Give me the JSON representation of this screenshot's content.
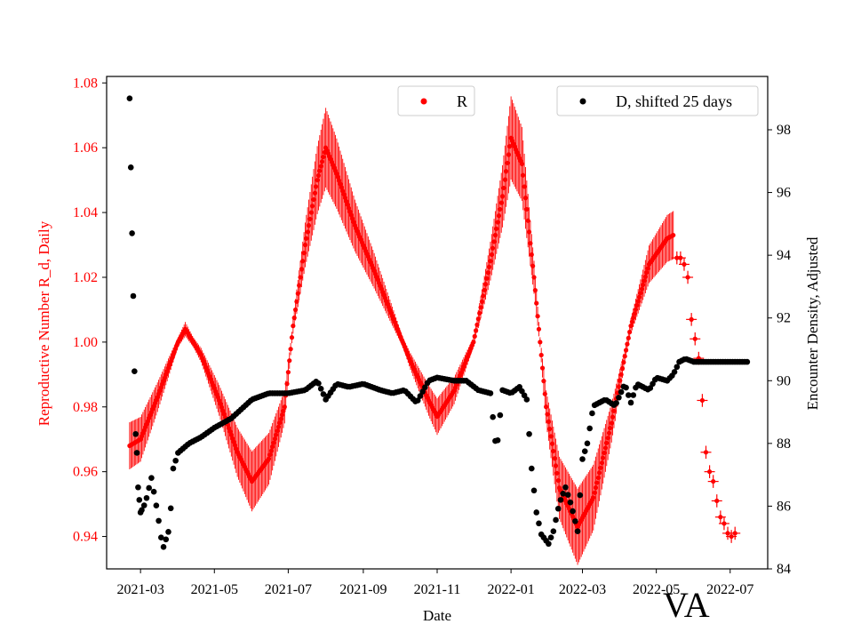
{
  "chart_data": {
    "type": "scatter",
    "state_label": "VA",
    "xlabel": "Date",
    "ylabel_left": "Reproductive Number R_d, Daily",
    "ylabel_right": "Encounter Density, Adjusted",
    "x_date_range": [
      "2021-02-01",
      "2022-08-01"
    ],
    "ylim_left": [
      0.93,
      1.082
    ],
    "ylim_right": [
      84,
      99.7
    ],
    "x_ticks": [
      "2021-03",
      "2021-05",
      "2021-07",
      "2021-09",
      "2021-11",
      "2022-01",
      "2022-03",
      "2022-05",
      "2022-07"
    ],
    "y_ticks_left": [
      "0.94",
      "0.96",
      "0.98",
      "1.00",
      "1.02",
      "1.04",
      "1.06",
      "1.08"
    ],
    "y_ticks_right": [
      "84",
      "86",
      "88",
      "90",
      "92",
      "94",
      "96",
      "98"
    ],
    "colors": {
      "R": "#ff0000",
      "D": "#000000",
      "left_axis": "#ff0000"
    },
    "series": [
      {
        "name": "R",
        "legend_label": "R",
        "axis": "left",
        "error_bars": "vertical, widening near peaks (up to about ±0.012)",
        "points": [
          [
            "2021-02-20",
            0.968
          ],
          [
            "2021-03-01",
            0.97
          ],
          [
            "2021-03-15",
            0.983
          ],
          [
            "2021-04-01",
            1.0
          ],
          [
            "2021-04-07",
            1.004
          ],
          [
            "2021-04-20",
            0.996
          ],
          [
            "2021-05-05",
            0.982
          ],
          [
            "2021-05-20",
            0.966
          ],
          [
            "2021-06-01",
            0.957
          ],
          [
            "2021-06-15",
            0.964
          ],
          [
            "2021-06-28",
            0.98
          ],
          [
            "2021-07-05",
            1.005
          ],
          [
            "2021-07-15",
            1.03
          ],
          [
            "2021-07-25",
            1.05
          ],
          [
            "2021-08-01",
            1.06
          ],
          [
            "2021-08-10",
            1.052
          ],
          [
            "2021-08-25",
            1.036
          ],
          [
            "2021-09-10",
            1.022
          ],
          [
            "2021-09-25",
            1.008
          ],
          [
            "2021-10-10",
            0.994
          ],
          [
            "2021-10-25",
            0.982
          ],
          [
            "2021-11-01",
            0.977
          ],
          [
            "2021-11-15",
            0.985
          ],
          [
            "2021-12-01",
            1.0
          ],
          [
            "2021-12-15",
            1.025
          ],
          [
            "2021-12-25",
            1.045
          ],
          [
            "2022-01-01",
            1.063
          ],
          [
            "2022-01-10",
            1.055
          ],
          [
            "2022-01-20",
            1.02
          ],
          [
            "2022-01-30",
            0.98
          ],
          [
            "2022-02-10",
            0.955
          ],
          [
            "2022-02-25",
            0.943
          ],
          [
            "2022-03-10",
            0.952
          ],
          [
            "2022-03-25",
            0.975
          ],
          [
            "2022-04-10",
            1.005
          ],
          [
            "2022-04-25",
            1.024
          ],
          [
            "2022-05-10",
            1.032
          ],
          [
            "2022-05-15",
            1.033
          ]
        ],
        "sparse_points": [
          [
            "2022-05-18",
            1.026
          ],
          [
            "2022-05-21",
            1.026
          ],
          [
            "2022-05-24",
            1.024
          ],
          [
            "2022-05-27",
            1.02
          ],
          [
            "2022-05-30",
            1.007
          ],
          [
            "2022-06-02",
            1.001
          ],
          [
            "2022-06-05",
            0.995
          ],
          [
            "2022-06-08",
            0.982
          ],
          [
            "2022-06-11",
            0.966
          ],
          [
            "2022-06-14",
            0.96
          ],
          [
            "2022-06-17",
            0.957
          ],
          [
            "2022-06-20",
            0.951
          ],
          [
            "2022-06-23",
            0.946
          ],
          [
            "2022-06-26",
            0.944
          ],
          [
            "2022-06-29",
            0.941
          ],
          [
            "2022-07-02",
            0.94
          ],
          [
            "2022-07-05",
            0.941
          ]
        ]
      },
      {
        "name": "D",
        "legend_label": "D, shifted 25 days",
        "axis": "right",
        "points": [
          [
            "2021-02-20",
            99.0
          ],
          [
            "2021-02-21",
            96.8
          ],
          [
            "2021-02-22",
            94.7
          ],
          [
            "2021-02-23",
            92.7
          ],
          [
            "2021-02-24",
            90.3
          ],
          [
            "2021-02-25",
            88.3
          ],
          [
            "2021-02-26",
            87.7
          ],
          [
            "2021-02-27",
            86.6
          ],
          [
            "2021-03-01",
            85.8
          ],
          [
            "2021-03-05",
            86.1
          ],
          [
            "2021-03-10",
            86.9
          ],
          [
            "2021-03-15",
            85.8
          ],
          [
            "2021-03-18",
            85.0
          ],
          [
            "2021-03-20",
            84.7
          ],
          [
            "2021-03-25",
            85.3
          ],
          [
            "2021-03-28",
            87.2
          ],
          [
            "2021-04-01",
            87.7
          ],
          [
            "2021-04-10",
            88.0
          ],
          [
            "2021-04-20",
            88.2
          ],
          [
            "2021-05-01",
            88.5
          ],
          [
            "2021-05-15",
            88.8
          ],
          [
            "2021-06-01",
            89.4
          ],
          [
            "2021-06-15",
            89.6
          ],
          [
            "2021-07-01",
            89.6
          ],
          [
            "2021-07-15",
            89.7
          ],
          [
            "2021-07-25",
            90.0
          ],
          [
            "2021-08-01",
            89.4
          ],
          [
            "2021-08-10",
            89.9
          ],
          [
            "2021-08-20",
            89.8
          ],
          [
            "2021-09-01",
            89.9
          ],
          [
            "2021-09-15",
            89.7
          ],
          [
            "2021-09-25",
            89.6
          ],
          [
            "2021-10-05",
            89.7
          ],
          [
            "2021-10-15",
            89.3
          ],
          [
            "2021-10-25",
            90.0
          ],
          [
            "2021-11-01",
            90.1
          ],
          [
            "2021-11-15",
            90.0
          ],
          [
            "2021-11-25",
            90.0
          ],
          [
            "2021-12-05",
            89.7
          ],
          [
            "2021-12-15",
            89.6
          ],
          [
            "2021-12-20",
            87.7
          ],
          [
            "2021-12-25",
            89.7
          ],
          [
            "2022-01-01",
            89.6
          ],
          [
            "2022-01-08",
            89.8
          ],
          [
            "2022-01-14",
            89.4
          ],
          [
            "2022-01-18",
            87.2
          ],
          [
            "2022-01-22",
            85.8
          ],
          [
            "2022-01-26",
            85.1
          ],
          [
            "2022-02-01",
            84.8
          ],
          [
            "2022-02-05",
            85.2
          ],
          [
            "2022-02-10",
            86.1
          ],
          [
            "2022-02-15",
            86.6
          ],
          [
            "2022-02-20",
            86.0
          ],
          [
            "2022-02-25",
            85.2
          ],
          [
            "2022-03-01",
            87.5
          ],
          [
            "2022-03-05",
            88.0
          ],
          [
            "2022-03-10",
            89.2
          ],
          [
            "2022-03-20",
            89.4
          ],
          [
            "2022-03-28",
            89.2
          ],
          [
            "2022-04-05",
            89.9
          ],
          [
            "2022-04-10",
            89.3
          ],
          [
            "2022-04-15",
            89.9
          ],
          [
            "2022-04-25",
            89.7
          ],
          [
            "2022-05-01",
            90.1
          ],
          [
            "2022-05-10",
            90.0
          ],
          [
            "2022-05-15",
            90.2
          ],
          [
            "2022-05-20",
            90.6
          ],
          [
            "2022-05-25",
            90.7
          ],
          [
            "2022-06-01",
            90.6
          ],
          [
            "2022-06-15",
            90.6
          ],
          [
            "2022-07-01",
            90.6
          ],
          [
            "2022-07-15",
            90.6
          ]
        ]
      }
    ]
  }
}
